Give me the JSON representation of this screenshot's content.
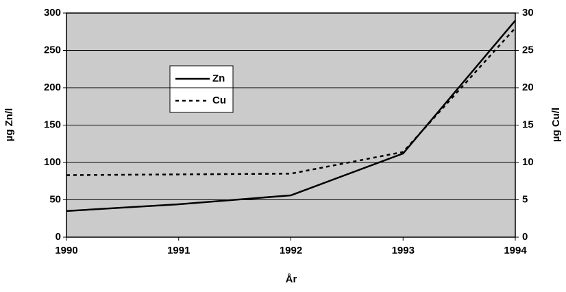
{
  "chart_data": {
    "type": "line",
    "x": [
      1990,
      1991,
      1992,
      1993,
      1994
    ],
    "xlim": [
      1990,
      1994
    ],
    "xticks": [
      1990,
      1991,
      1992,
      1993,
      1994
    ],
    "ylim": [
      0,
      300
    ],
    "yticks": [
      0,
      50,
      100,
      150,
      200,
      250,
      300
    ],
    "y2lim": [
      0,
      30
    ],
    "y2ticks": [
      0,
      5,
      10,
      15,
      20,
      25,
      30
    ],
    "xlabel": "År",
    "ylabel": "µg Zn/l",
    "y2label": "µg Cu/l",
    "grid": true,
    "series": [
      {
        "name": "Zn",
        "color": "#000000",
        "line_style": "solid",
        "values": [
          35,
          44,
          56,
          112,
          290
        ]
      },
      {
        "name": "Cu",
        "color": "#000000",
        "line_style": "dashed",
        "axis": "y2",
        "values": [
          8.3,
          8.4,
          8.5,
          11.4,
          28
        ]
      }
    ]
  }
}
